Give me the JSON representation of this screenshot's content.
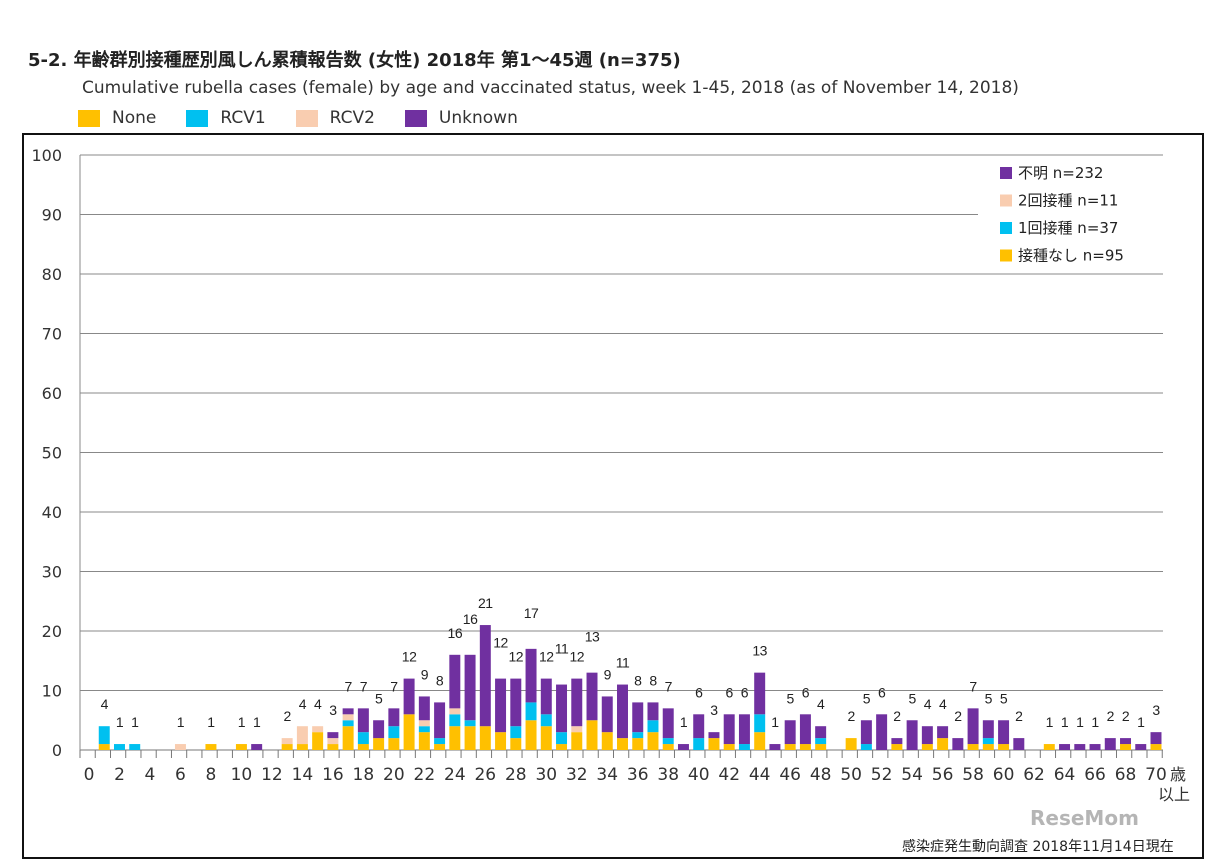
{
  "chart_data": {
    "type": "bar",
    "stacked": true,
    "title": "5-2. 年齢群別接種歴別風しん累積報告数 (女性) 2018年 第1〜45週 (n=375)",
    "subtitle": "Cumulative rubella cases (female) by age and vaccinated status, week 1-45, 2018 (as of November 14, 2018)",
    "xlabel": "歳以上",
    "ylim": [
      0,
      100
    ],
    "yticks": [
      0,
      10,
      20,
      30,
      40,
      50,
      60,
      70,
      80,
      90,
      100
    ],
    "xticks": [
      0,
      2,
      4,
      6,
      8,
      10,
      12,
      14,
      16,
      18,
      20,
      22,
      24,
      26,
      28,
      30,
      32,
      34,
      36,
      38,
      40,
      42,
      44,
      46,
      48,
      50,
      52,
      54,
      56,
      58,
      60,
      62,
      64,
      66,
      68,
      70
    ],
    "x_last_label_suffix": "歳",
    "x_last_label_line2": "以上",
    "grid": true,
    "legend_top": [
      "None",
      "RCV1",
      "RCV2",
      "Unknown"
    ],
    "legend_inner": [
      "不明 n=232",
      "2回接種 n=11",
      "1回接種 n=37",
      "接種なし n=95"
    ],
    "legend_inner_placement": "top-right",
    "colors": {
      "None": "#FFC000",
      "RCV1": "#00C0F0",
      "RCV2": "#F9CDB0",
      "Unknown": "#7030A0"
    },
    "ages": [
      0,
      1,
      2,
      3,
      4,
      5,
      6,
      7,
      8,
      9,
      10,
      11,
      12,
      13,
      14,
      15,
      16,
      17,
      18,
      19,
      20,
      21,
      22,
      23,
      24,
      25,
      26,
      27,
      28,
      29,
      30,
      31,
      32,
      33,
      34,
      35,
      36,
      37,
      38,
      39,
      40,
      41,
      42,
      43,
      44,
      45,
      46,
      47,
      48,
      49,
      50,
      51,
      52,
      53,
      54,
      55,
      56,
      57,
      58,
      59,
      60,
      61,
      62,
      63,
      64,
      65,
      66,
      67,
      68,
      69,
      70
    ],
    "series": [
      {
        "name": "None",
        "values": [
          0,
          1,
          0,
          0,
          0,
          0,
          0,
          0,
          1,
          0,
          1,
          0,
          0,
          1,
          1,
          3,
          1,
          4,
          1,
          2,
          2,
          6,
          3,
          1,
          4,
          4,
          4,
          3,
          2,
          5,
          4,
          1,
          3,
          5,
          3,
          2,
          2,
          3,
          1,
          0,
          0,
          2,
          1,
          0,
          3,
          0,
          1,
          1,
          1,
          0,
          2,
          0,
          0,
          1,
          0,
          1,
          2,
          0,
          1,
          1,
          1,
          0,
          0,
          1,
          0,
          0,
          0,
          0,
          1,
          0,
          1
        ]
      },
      {
        "name": "RCV1",
        "values": [
          0,
          3,
          1,
          1,
          0,
          0,
          0,
          0,
          0,
          0,
          0,
          0,
          0,
          0,
          0,
          0,
          0,
          1,
          2,
          0,
          2,
          0,
          1,
          1,
          2,
          1,
          0,
          0,
          2,
          3,
          2,
          2,
          0,
          0,
          0,
          0,
          1,
          2,
          1,
          0,
          2,
          0,
          0,
          1,
          3,
          0,
          0,
          0,
          1,
          0,
          0,
          1,
          0,
          0,
          0,
          0,
          0,
          0,
          0,
          1,
          0,
          0,
          0,
          0,
          0,
          0,
          0,
          0,
          0,
          0,
          0
        ]
      },
      {
        "name": "RCV2",
        "values": [
          0,
          0,
          0,
          0,
          0,
          0,
          1,
          0,
          0,
          0,
          0,
          0,
          0,
          1,
          3,
          1,
          1,
          1,
          0,
          0,
          0,
          0,
          1,
          0,
          1,
          0,
          0,
          0,
          0,
          0,
          0,
          0,
          1,
          0,
          0,
          0,
          0,
          0,
          0,
          0,
          0,
          0,
          0,
          0,
          0,
          0,
          0,
          0,
          0,
          0,
          0,
          0,
          0,
          0,
          0,
          0,
          0,
          0,
          0,
          0,
          0,
          0,
          0,
          0,
          0,
          0,
          0,
          0,
          0,
          0,
          0
        ]
      },
      {
        "name": "Unknown",
        "values": [
          0,
          0,
          0,
          0,
          0,
          0,
          0,
          0,
          0,
          0,
          0,
          1,
          0,
          0,
          0,
          0,
          1,
          1,
          4,
          3,
          3,
          6,
          4,
          6,
          9,
          11,
          17,
          9,
          8,
          9,
          6,
          8,
          8,
          8,
          6,
          9,
          5,
          3,
          5,
          1,
          4,
          1,
          5,
          5,
          7,
          1,
          4,
          5,
          2,
          0,
          0,
          4,
          6,
          1,
          5,
          3,
          2,
          2,
          6,
          3,
          4,
          2,
          0,
          0,
          1,
          1,
          1,
          2,
          1,
          1,
          2
        ]
      }
    ],
    "totals": [
      0,
      4,
      1,
      1,
      0,
      0,
      1,
      0,
      1,
      0,
      1,
      1,
      0,
      2,
      4,
      4,
      3,
      7,
      7,
      5,
      7,
      12,
      9,
      8,
      16,
      16,
      21,
      12,
      12,
      17,
      12,
      11,
      12,
      13,
      9,
      11,
      8,
      8,
      7,
      1,
      6,
      3,
      6,
      6,
      13,
      1,
      5,
      6,
      4,
      0,
      2,
      5,
      6,
      2,
      5,
      4,
      4,
      2,
      7,
      5,
      5,
      2,
      0,
      1,
      1,
      1,
      1,
      2,
      2,
      1,
      3
    ]
  },
  "footer": {
    "source": "感染症発生動向調査 2018年11月14日現在",
    "watermark": "ReseMom"
  }
}
